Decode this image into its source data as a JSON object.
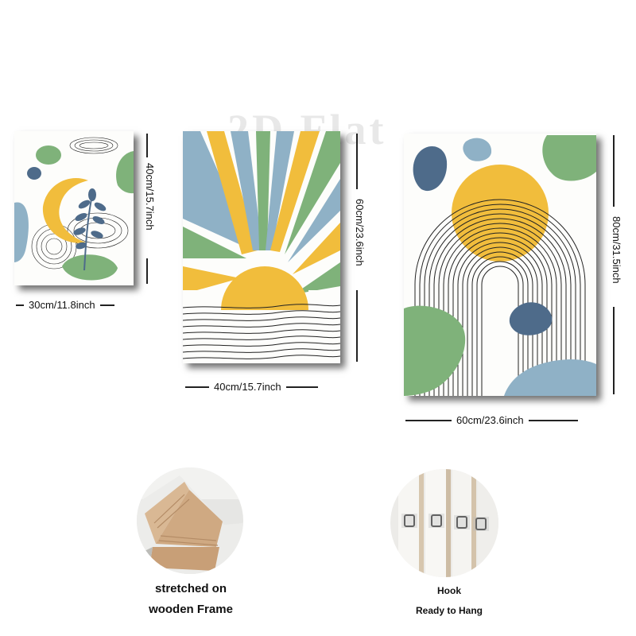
{
  "watermark": "2D Flat",
  "canvases": [
    {
      "name": "moon-leaf-print",
      "width_label": "30cm/11.8inch",
      "height_label": "40cm/15.7inch"
    },
    {
      "name": "sunrise-print",
      "width_label": "40cm/15.7inch",
      "height_label": "60cm/23.6inch"
    },
    {
      "name": "arch-sun-print",
      "width_label": "60cm/23.6inch",
      "height_label": "80cm/31.5inch"
    }
  ],
  "features": [
    {
      "name": "frame",
      "caption_line1": "stretched on",
      "caption_line2": "wooden Frame"
    },
    {
      "name": "hook",
      "caption_line1": "Hook",
      "caption_line2": "Ready to Hang"
    }
  ],
  "colors": {
    "yellow": "#f1bd3c",
    "green": "#7fb27a",
    "blue": "#8fb1c6",
    "navy": "#4e6b8a"
  }
}
